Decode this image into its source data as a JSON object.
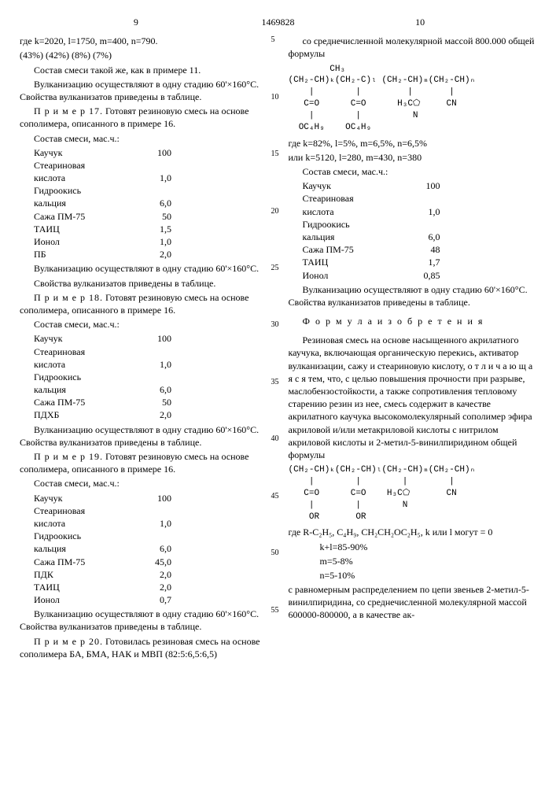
{
  "doc_number": "1469828",
  "page_left": "9",
  "page_right": "10",
  "left": {
    "intro1": "где k=2020, l=1750, m=400, n=790.",
    "intro2": "(43%)    (42%)    (8%)    (7%)",
    "p1": "Состав смеси такой же, как в примере 11.",
    "p2": "Вулканизацию осуществляют в одну стадию 60'×160°С. Свойства вулканизатов приведены в таблице.",
    "ex17_hdr": "П р и м е р  17.",
    "ex17_txt": "Готовят резиновую смесь на основе сополимера, описанного в примере 16.",
    "comp_hdr": "Состав смеси,         мас.ч.:",
    "t17": [
      [
        "Каучук",
        "100"
      ],
      [
        "Стеариновая",
        ""
      ],
      [
        "кислота",
        "1,0"
      ],
      [
        "Гидроокись",
        ""
      ],
      [
        "кальция",
        "6,0"
      ],
      [
        "Сажа ПМ-75",
        "50"
      ],
      [
        "ТАИЦ",
        "1,5"
      ],
      [
        "Ионол",
        "1,0"
      ],
      [
        "ПБ",
        "2,0"
      ]
    ],
    "p3": "Вулканизацию осуществляют в одну стадию 60'×160°С.",
    "p4": "Свойства вулканизатов приведены в таблице.",
    "ex18_hdr": "П р и м е р  18.",
    "ex18_txt": "Готовят резиновую смесь на основе сополимера, описанного в примере 16.",
    "t18": [
      [
        "Каучук",
        "100"
      ],
      [
        "Стеариновая",
        ""
      ],
      [
        "кислота",
        "1,0"
      ],
      [
        "Гидроокись",
        ""
      ],
      [
        "кальция",
        "6,0"
      ],
      [
        "Сажа ПМ-75",
        "50"
      ],
      [
        "ПДХБ",
        "2,0"
      ]
    ],
    "p5": "Вулканизацию осуществляют в одну стадию 60'×160°С. Свойства вулканизатов приведены в таблице.",
    "ex19_hdr": "П р и м е р  19.",
    "ex19_txt": "Готовят резиновую смесь на основе сополимера, описанного в примере 16.",
    "t19": [
      [
        "Каучук",
        "100"
      ],
      [
        "Стеариновая",
        ""
      ],
      [
        "кислота",
        "1,0"
      ],
      [
        "Гидроокись",
        ""
      ],
      [
        "кальция",
        "6,0"
      ],
      [
        "Сажа ПМ-75",
        "45,0"
      ],
      [
        "ПДК",
        "2,0"
      ],
      [
        "ТАИЦ",
        "2,0"
      ],
      [
        "Ионол",
        "0,7"
      ]
    ],
    "p6": "Вулканизацию осуществляют в одну стадию 60'×160°С. Свойства вулканизатов приведены в таблице.",
    "ex20_hdr": "П р и м е р  20.",
    "ex20_txt": "Готовилась резиновая смесь на основе  сополимера БА, БМА, НАК и МВП (82:5:6,5:6,5)"
  },
  "right": {
    "p1": "со среднечисленной молекулярной массой 800.000 общей формулы",
    "formula1": "        CH₃\n(CH₂-CH)ₖ(CH₂-C)ₗ (CH₂-CH)ₘ(CH₂-CH)ₙ\n    |        |         |       |\n   C=O      C=O      H₃C⬠     CN\n    |        |          N\n  OC₄H₉    OC₄H₉",
    "p2": "где k=82%, l=5%, m=6,5%, n=6,5%",
    "p3": "или k=5120, l=280, m=430, n=380",
    "comp_hdr": "Состав смеси,         мас.ч.:",
    "t20": [
      [
        "Каучук",
        "100"
      ],
      [
        "Стеариновая",
        ""
      ],
      [
        "кислота",
        "1,0"
      ],
      [
        "Гидроокись",
        ""
      ],
      [
        "кальция",
        "6,0"
      ],
      [
        "Сажа ПМ-75",
        "48"
      ],
      [
        "ТАИЦ",
        "1,7"
      ],
      [
        "Ионол",
        "0,85"
      ]
    ],
    "p4": "Вулканизацию осуществляют в одну стадию 60'×160°С. Свойства вулканизатов приведены в таблице.",
    "claims_hdr": "Ф о р м у л а   и з о б р е т е н и я",
    "claim_body": "Резиновая смесь на основе насыщенного акрилатного каучука, включающая органическую перекись, активатор вулканизации, сажу и стеариновую кислоту, о т л и ч а ю щ а я с я  тем, что, с целью повышения прочности  при разрыве, маслобензостойкости, а также сопротивления тепловому старению резин из нее, смесь содержит в качестве акрилатного каучука высокомолекулярный сополимер эфира акриловой и/или метакриловой кислоты с нитрилом акриловой кислоты и 2-метил-5-винилпиридином общей формулы",
    "formula2": "(CH₂-CH)ₖ(CH₂-CH)ₗ(CH₂-CH)ₘ(CH₂-CH)ₙ\n    |        |        |        |\n   C=O      C=O    H₃C⬠       CN\n    |        |        N\n    OR       OR",
    "p5": "где R-C₂H₅, C₄H₉, CH₂CH₂OC₂H₅, k или l могут = 0",
    "eq1": "k+l=85-90%",
    "eq2": "m=5-8%",
    "eq3": "n=5-10%",
    "p6": "с равномерным распределением по цепи звеньев 2-метил-5-винилпиридина, со среднечисленной молекулярной массой 600000-800000, а в качестве ак-"
  },
  "linenums": [
    "5",
    "10",
    "15",
    "20",
    "25",
    "30",
    "35",
    "40",
    "45",
    "50",
    "55"
  ]
}
